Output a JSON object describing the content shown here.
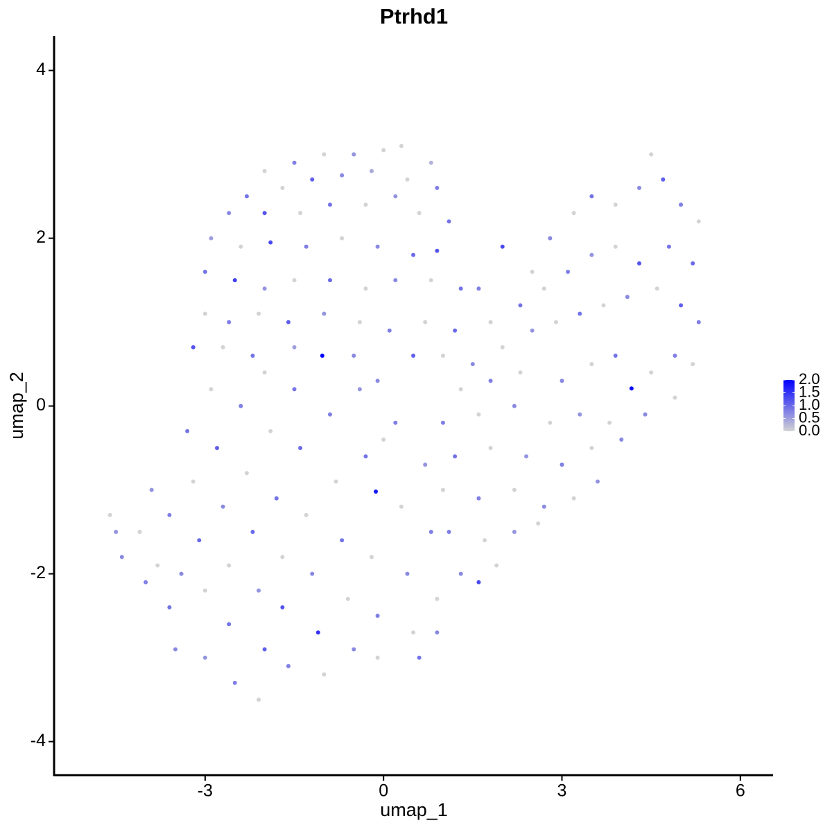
{
  "chart_data": {
    "type": "scatter",
    "title": "Ptrhd1",
    "xlabel": "umap_1",
    "ylabel": "umap_2",
    "xlim": [
      -5.54,
      6.55
    ],
    "xticks": [
      -3,
      0,
      3,
      6
    ],
    "ylim": [
      -4.4,
      4.41
    ],
    "yticks": [
      -4,
      -2,
      0,
      2,
      4
    ],
    "colors": [
      "#d3d3d3",
      "#0000ff"
    ],
    "colorlim": [
      0,
      2
    ],
    "colorticks": [
      {
        "value": 0,
        "label": "0.0"
      },
      {
        "value": 0.5,
        "label": "0.5"
      },
      {
        "value": 1,
        "label": "1.0"
      },
      {
        "value": 1.5,
        "label": "1.5"
      },
      {
        "value": 2,
        "label": "2.0"
      }
    ],
    "points": [
      [
        -2.0,
        2.8,
        0
      ],
      [
        -1.5,
        2.9,
        0.8
      ],
      [
        -1.0,
        3.0,
        0
      ],
      [
        -0.5,
        3.0,
        0.6
      ],
      [
        0,
        3.05,
        0
      ],
      [
        0.3,
        3.1,
        0
      ],
      [
        0.8,
        2.9,
        0.3
      ],
      [
        -2.3,
        2.5,
        0.9
      ],
      [
        -1.7,
        2.6,
        0
      ],
      [
        -1.2,
        2.7,
        1.1
      ],
      [
        -0.7,
        2.75,
        0.7
      ],
      [
        -0.2,
        2.8,
        0.4
      ],
      [
        0.4,
        2.7,
        0
      ],
      [
        0.9,
        2.6,
        0.8
      ],
      [
        -2.6,
        2.3,
        0.7
      ],
      [
        -2.0,
        2.3,
        1.2
      ],
      [
        -1.4,
        2.3,
        0
      ],
      [
        -0.9,
        2.4,
        0.9
      ],
      [
        -0.3,
        2.4,
        0
      ],
      [
        0.2,
        2.5,
        0.6
      ],
      [
        0.6,
        2.3,
        0
      ],
      [
        1.1,
        2.2,
        0.9
      ],
      [
        -2.9,
        2.0,
        0.5
      ],
      [
        -2.4,
        1.9,
        0
      ],
      [
        -1.9,
        1.95,
        1.3
      ],
      [
        -1.3,
        1.9,
        0.8
      ],
      [
        -0.7,
        2.0,
        0
      ],
      [
        -0.1,
        1.9,
        0.7
      ],
      [
        0.5,
        1.8,
        1.0
      ],
      [
        0.9,
        1.85,
        1.2
      ],
      [
        -3.0,
        1.6,
        0.9
      ],
      [
        -2.5,
        1.5,
        1.4
      ],
      [
        -2.0,
        1.4,
        0.6
      ],
      [
        -1.5,
        1.5,
        0
      ],
      [
        -0.9,
        1.5,
        1.0
      ],
      [
        -0.3,
        1.4,
        0
      ],
      [
        0.2,
        1.5,
        0.7
      ],
      [
        0.8,
        1.5,
        0
      ],
      [
        1.3,
        1.4,
        0.9
      ],
      [
        -3.0,
        1.1,
        0
      ],
      [
        -2.6,
        1.0,
        0.8
      ],
      [
        -2.1,
        1.1,
        0
      ],
      [
        -1.6,
        1.0,
        1.1
      ],
      [
        -1.0,
        1.1,
        0.6
      ],
      [
        -0.4,
        1.0,
        0
      ],
      [
        0.1,
        0.9,
        0.8
      ],
      [
        0.7,
        1.0,
        0
      ],
      [
        1.2,
        0.9,
        1.0
      ],
      [
        -3.2,
        0.7,
        1.2
      ],
      [
        -2.7,
        0.7,
        0
      ],
      [
        -2.2,
        0.6,
        0.9
      ],
      [
        -1.5,
        0.7,
        0.5
      ],
      [
        -1.03,
        0.6,
        2.0
      ],
      [
        -0.5,
        0.6,
        0.7
      ],
      [
        0.5,
        0.6,
        1.1
      ],
      [
        1.0,
        0.6,
        0
      ],
      [
        1.6,
        1.4,
        0.8
      ],
      [
        2.0,
        1.9,
        1.3
      ],
      [
        2.5,
        1.6,
        0
      ],
      [
        2.8,
        2.0,
        0.7
      ],
      [
        3.2,
        2.3,
        0
      ],
      [
        3.5,
        2.5,
        0.9
      ],
      [
        3.9,
        2.4,
        0
      ],
      [
        4.3,
        2.6,
        0.7
      ],
      [
        4.5,
        3.0,
        0
      ],
      [
        4.7,
        2.7,
        1.1
      ],
      [
        5.0,
        2.4,
        0.8
      ],
      [
        5.3,
        2.2,
        0
      ],
      [
        1.8,
        1.0,
        0
      ],
      [
        2.3,
        1.2,
        0.9
      ],
      [
        2.7,
        1.4,
        0
      ],
      [
        3.1,
        1.6,
        0.8
      ],
      [
        3.5,
        1.8,
        0.6
      ],
      [
        3.9,
        1.9,
        0
      ],
      [
        4.3,
        1.7,
        1.2
      ],
      [
        4.8,
        1.9,
        0.9
      ],
      [
        5.2,
        1.7,
        1.0
      ],
      [
        1.5,
        0.5,
        0.7
      ],
      [
        2.0,
        0.7,
        0
      ],
      [
        2.5,
        0.9,
        0.6
      ],
      [
        2.9,
        1.0,
        0
      ],
      [
        3.3,
        1.1,
        0.9
      ],
      [
        3.7,
        1.2,
        0
      ],
      [
        4.1,
        1.3,
        0.7
      ],
      [
        4.6,
        1.4,
        0
      ],
      [
        5.0,
        1.2,
        1.1
      ],
      [
        5.3,
        1.0,
        0.8
      ],
      [
        1.3,
        0.2,
        0
      ],
      [
        1.8,
        0.3,
        0.8
      ],
      [
        2.3,
        0.4,
        0
      ],
      [
        3.0,
        0.3,
        0.7
      ],
      [
        3.5,
        0.5,
        0
      ],
      [
        3.9,
        0.6,
        0.9
      ],
      [
        4.17,
        0.21,
        1.9
      ],
      [
        4.5,
        0.4,
        0
      ],
      [
        4.9,
        0.6,
        0.8
      ],
      [
        5.2,
        0.5,
        0
      ],
      [
        1.0,
        -0.2,
        0.8
      ],
      [
        1.6,
        -0.1,
        0
      ],
      [
        2.2,
        0,
        0.7
      ],
      [
        2.8,
        -0.2,
        0
      ],
      [
        3.3,
        -0.1,
        0.6
      ],
      [
        3.8,
        -0.2,
        0
      ],
      [
        4.4,
        -0.1,
        0.7
      ],
      [
        4.9,
        0.1,
        0
      ],
      [
        1.2,
        -0.6,
        0.9
      ],
      [
        1.8,
        -0.5,
        0
      ],
      [
        2.4,
        -0.6,
        0.6
      ],
      [
        3.0,
        -0.7,
        0.8
      ],
      [
        3.5,
        -0.5,
        0
      ],
      [
        4.0,
        -0.4,
        0.7
      ],
      [
        1.0,
        -1.0,
        0
      ],
      [
        1.6,
        -1.1,
        0.8
      ],
      [
        2.2,
        -1.0,
        0
      ],
      [
        2.7,
        -1.2,
        0.7
      ],
      [
        3.2,
        -1.1,
        0
      ],
      [
        3.6,
        -0.9,
        0.6
      ],
      [
        1.1,
        -1.5,
        0.8
      ],
      [
        1.7,
        -1.6,
        0
      ],
      [
        2.2,
        -1.5,
        0.6
      ],
      [
        2.6,
        -1.4,
        0
      ],
      [
        1.3,
        -2.0,
        0.7
      ],
      [
        1.6,
        -2.1,
        1.3
      ],
      [
        1.9,
        -1.9,
        0
      ],
      [
        -4.6,
        -1.3,
        0
      ],
      [
        -4.5,
        -1.5,
        0.6
      ],
      [
        -4.4,
        -1.8,
        0.7
      ],
      [
        -4.1,
        -1.5,
        0
      ],
      [
        -4.0,
        -2.1,
        0.8
      ],
      [
        -3.8,
        -1.9,
        0
      ],
      [
        -3.6,
        -1.3,
        0.8
      ],
      [
        -3.6,
        -2.4,
        0.9
      ],
      [
        -3.5,
        -2.9,
        0.7
      ],
      [
        -3.3,
        -0.3,
        0.9
      ],
      [
        -3.2,
        -0.9,
        0
      ],
      [
        -3.1,
        -1.6,
        1.0
      ],
      [
        -3.0,
        -2.2,
        0
      ],
      [
        -3.0,
        -3.0,
        0.6
      ],
      [
        -2.9,
        0.2,
        0
      ],
      [
        -2.8,
        -0.5,
        1.1
      ],
      [
        -2.7,
        -1.2,
        0.7
      ],
      [
        -2.6,
        -1.9,
        0
      ],
      [
        -2.6,
        -2.6,
        0.9
      ],
      [
        -2.5,
        -3.3,
        0.8
      ],
      [
        -2.4,
        0.0,
        0.8
      ],
      [
        -2.3,
        -0.8,
        0
      ],
      [
        -2.2,
        -1.5,
        1.0
      ],
      [
        -2.1,
        -2.2,
        0.6
      ],
      [
        -2.0,
        -2.9,
        1.1
      ],
      [
        -2.1,
        -3.5,
        0
      ],
      [
        -1.9,
        -0.3,
        0
      ],
      [
        -1.8,
        -1.1,
        0.9
      ],
      [
        -1.7,
        -1.8,
        0
      ],
      [
        -1.7,
        -2.4,
        1.2
      ],
      [
        -1.6,
        -3.1,
        0.8
      ],
      [
        -1.4,
        -0.5,
        1.0
      ],
      [
        -1.3,
        -1.3,
        0
      ],
      [
        -1.2,
        -2.0,
        0.7
      ],
      [
        -1.1,
        -2.7,
        1.5
      ],
      [
        -1.0,
        -3.2,
        0
      ],
      [
        -0.9,
        -0.1,
        0.8
      ],
      [
        -0.8,
        -0.9,
        0
      ],
      [
        -0.7,
        -1.6,
        0.9
      ],
      [
        -0.6,
        -2.3,
        0
      ],
      [
        -0.5,
        -2.9,
        0.7
      ],
      [
        -0.4,
        0.2,
        0.6
      ],
      [
        -0.3,
        -0.6,
        0.9
      ],
      [
        -0.13,
        -1.02,
        1.8
      ],
      [
        -0.2,
        -1.8,
        0
      ],
      [
        -0.1,
        -2.5,
        0.8
      ],
      [
        -0.1,
        -3.0,
        0
      ],
      [
        0.2,
        -0.2,
        0.8
      ],
      [
        0.3,
        -1.2,
        0
      ],
      [
        0.4,
        -2.0,
        0.7
      ],
      [
        0.5,
        -2.7,
        0
      ],
      [
        0.6,
        -3.0,
        0.9
      ],
      [
        0.7,
        -0.7,
        0.6
      ],
      [
        0.8,
        -1.5,
        0.8
      ],
      [
        0.9,
        -2.3,
        0
      ],
      [
        0.9,
        -2.7,
        0.7
      ],
      [
        -0.1,
        0.3,
        0.7
      ],
      [
        -3.9,
        -1.0,
        0.6
      ],
      [
        -3.4,
        -2.0,
        0.7
      ],
      [
        -1.5,
        0.2,
        0.9
      ],
      [
        -2.0,
        0.4,
        0
      ],
      [
        0.0,
        -0.4,
        0
      ]
    ]
  }
}
